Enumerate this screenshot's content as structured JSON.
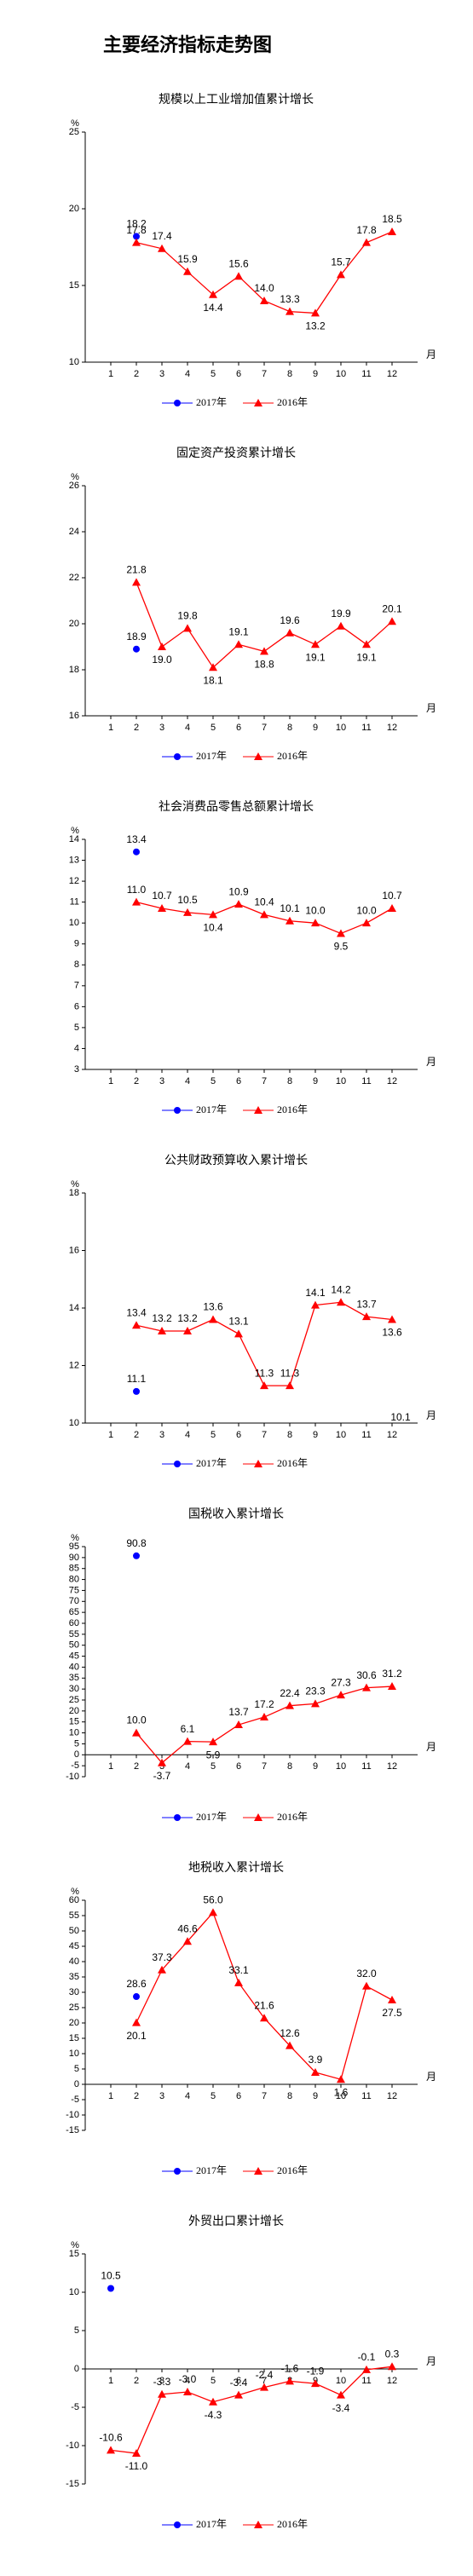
{
  "title": "主要经济指标走势图",
  "chart_data": [
    {
      "type": "line",
      "title": "规模以上工业增加值累计增长",
      "y_label": "%",
      "x_label": "月",
      "categories": [
        "1",
        "2",
        "3",
        "4",
        "5",
        "6",
        "7",
        "8",
        "9",
        "10",
        "11",
        "12"
      ],
      "ylim": [
        10,
        25
      ],
      "yticks": [
        10,
        15,
        20,
        25
      ],
      "series": [
        {
          "name": "2017年",
          "color": "#0000ff",
          "marker": "circle",
          "values": [
            null,
            18.2,
            null,
            null,
            null,
            null,
            null,
            null,
            null,
            null,
            null,
            null
          ],
          "value_labels": [
            null,
            "18.2",
            null,
            null,
            null,
            null,
            null,
            null,
            null,
            null,
            null,
            null
          ]
        },
        {
          "name": "2016年",
          "color": "#ff0000",
          "marker": "triangle",
          "values": [
            null,
            17.8,
            17.4,
            15.9,
            14.4,
            15.6,
            14.0,
            13.3,
            13.2,
            15.7,
            17.8,
            18.5
          ],
          "value_labels": [
            null,
            "17.8",
            "17.4",
            "15.9",
            "14.4",
            "15.6",
            "14.0",
            "13.3",
            "13.2",
            "15.7",
            "17.8",
            "18.5"
          ]
        }
      ]
    },
    {
      "type": "line",
      "title": "固定资产投资累计增长",
      "y_label": "%",
      "x_label": "月",
      "categories": [
        "1",
        "2",
        "3",
        "4",
        "5",
        "6",
        "7",
        "8",
        "9",
        "10",
        "11",
        "12"
      ],
      "ylim": [
        16,
        26
      ],
      "yticks": [
        16,
        18,
        20,
        22,
        24,
        26
      ],
      "series": [
        {
          "name": "2017年",
          "color": "#0000ff",
          "marker": "circle",
          "values": [
            null,
            18.9,
            null,
            null,
            null,
            null,
            null,
            null,
            null,
            null,
            null,
            null
          ],
          "value_labels": [
            null,
            "18.9",
            null,
            null,
            null,
            null,
            null,
            null,
            null,
            null,
            null,
            null
          ]
        },
        {
          "name": "2016年",
          "color": "#ff0000",
          "marker": "triangle",
          "values": [
            null,
            21.8,
            19.0,
            19.8,
            18.1,
            19.1,
            18.8,
            19.6,
            19.1,
            19.9,
            19.1,
            20.1
          ],
          "value_labels": [
            null,
            "21.8",
            "19.0",
            "19.8",
            "18.1",
            "19.1",
            "18.8",
            "19.6",
            "19.1",
            "19.9",
            "19.1",
            "20.1"
          ]
        }
      ]
    },
    {
      "type": "line",
      "title": "社会消费品零售总额累计增长",
      "y_label": "%",
      "x_label": "月",
      "categories": [
        "1",
        "2",
        "3",
        "4",
        "5",
        "6",
        "7",
        "8",
        "9",
        "10",
        "11",
        "12"
      ],
      "ylim": [
        3,
        14
      ],
      "yticks": [
        3,
        4,
        5,
        6,
        7,
        8,
        9,
        10,
        11,
        12,
        13,
        14
      ],
      "series": [
        {
          "name": "2017年",
          "color": "#0000ff",
          "marker": "circle",
          "values": [
            null,
            13.4,
            null,
            null,
            null,
            null,
            null,
            null,
            null,
            null,
            null,
            null
          ],
          "value_labels": [
            null,
            "13.4",
            null,
            null,
            null,
            null,
            null,
            null,
            null,
            null,
            null,
            null
          ]
        },
        {
          "name": "2016年",
          "color": "#ff0000",
          "marker": "triangle",
          "values": [
            null,
            11.0,
            10.7,
            10.5,
            10.4,
            10.9,
            10.4,
            10.1,
            10.0,
            9.5,
            10.0,
            10.7
          ],
          "value_labels": [
            null,
            "11.0",
            "10.7",
            "10.5",
            "10.4",
            "10.9",
            "10.4",
            "10.1",
            "10.0",
            "9.5",
            "10.0",
            "10.7"
          ]
        }
      ]
    },
    {
      "type": "line",
      "title": "公共财政预算收入累计增长",
      "y_label": "%",
      "x_label": "月",
      "categories": [
        "1",
        "2",
        "3",
        "4",
        "5",
        "6",
        "7",
        "8",
        "9",
        "10",
        "11",
        "12"
      ],
      "ylim": [
        10,
        18
      ],
      "yticks": [
        10,
        12,
        14,
        16,
        18
      ],
      "annotation": "10.1",
      "series": [
        {
          "name": "2017年",
          "color": "#0000ff",
          "marker": "circle",
          "values": [
            null,
            11.1,
            null,
            null,
            null,
            null,
            null,
            null,
            null,
            null,
            null,
            null
          ],
          "value_labels": [
            null,
            "11.1",
            null,
            null,
            null,
            null,
            null,
            null,
            null,
            null,
            null,
            null
          ]
        },
        {
          "name": "2016年",
          "color": "#ff0000",
          "marker": "triangle",
          "values": [
            null,
            13.4,
            13.2,
            13.2,
            13.6,
            13.1,
            11.3,
            11.3,
            14.1,
            14.2,
            13.7,
            13.6
          ],
          "value_labels": [
            null,
            "13.4",
            "13.2",
            "13.2",
            "13.6",
            "13.1",
            "11.3",
            "11.3",
            "14.1",
            "14.2",
            "13.7",
            "13.6"
          ]
        }
      ]
    },
    {
      "type": "line",
      "title": "国税收入累计增长",
      "y_label": "%",
      "x_label": "月",
      "categories": [
        "1",
        "2",
        "3",
        "4",
        "5",
        "6",
        "7",
        "8",
        "9",
        "10",
        "11",
        "12"
      ],
      "ylim": [
        -10,
        95
      ],
      "yticks": [
        -10,
        -5,
        0,
        5,
        10,
        15,
        20,
        25,
        30,
        35,
        40,
        45,
        50,
        55,
        60,
        65,
        70,
        75,
        80,
        85,
        90,
        95
      ],
      "series": [
        {
          "name": "2017年",
          "color": "#0000ff",
          "marker": "circle",
          "values": [
            null,
            90.8,
            null,
            null,
            null,
            null,
            null,
            null,
            null,
            null,
            null,
            null
          ],
          "value_labels": [
            null,
            "90.8",
            null,
            null,
            null,
            null,
            null,
            null,
            null,
            null,
            null,
            null
          ]
        },
        {
          "name": "2016年",
          "color": "#ff0000",
          "marker": "triangle",
          "values": [
            null,
            10.0,
            -3.7,
            6.1,
            5.9,
            13.7,
            17.2,
            22.4,
            23.3,
            27.3,
            30.6,
            31.2
          ],
          "value_labels": [
            null,
            "10.0",
            "-3.7",
            "6.1",
            "5.9",
            "13.7",
            "17.2",
            "22.4",
            "23.3",
            "27.3",
            "30.6",
            "31.2"
          ]
        }
      ]
    },
    {
      "type": "line",
      "title": "地税收入累计增长",
      "y_label": "%",
      "x_label": "月",
      "categories": [
        "1",
        "2",
        "3",
        "4",
        "5",
        "6",
        "7",
        "8",
        "9",
        "10",
        "11",
        "12"
      ],
      "ylim": [
        -15,
        60
      ],
      "yticks": [
        -15,
        -10,
        -5,
        0,
        5,
        10,
        15,
        20,
        25,
        30,
        35,
        40,
        45,
        50,
        55,
        60
      ],
      "series": [
        {
          "name": "2017年",
          "color": "#0000ff",
          "marker": "circle",
          "values": [
            null,
            28.6,
            null,
            null,
            null,
            null,
            null,
            null,
            null,
            null,
            null,
            null
          ],
          "value_labels": [
            null,
            "28.6",
            null,
            null,
            null,
            null,
            null,
            null,
            null,
            null,
            null,
            null
          ]
        },
        {
          "name": "2016年",
          "color": "#ff0000",
          "marker": "triangle",
          "values": [
            null,
            20.1,
            37.3,
            46.6,
            56.0,
            33.1,
            21.6,
            12.6,
            3.9,
            1.6,
            32.0,
            27.5
          ],
          "value_labels": [
            null,
            "20.1",
            "37.3",
            "46.6",
            "56.0",
            "33.1",
            "21.6",
            "12.6",
            "3.9",
            "1.6",
            "32.0",
            "27.5"
          ]
        }
      ]
    },
    {
      "type": "line",
      "title": "外贸出口累计增长",
      "y_label": "%",
      "x_label": "月",
      "categories": [
        "1",
        "2",
        "3",
        "4",
        "5",
        "6",
        "7",
        "8",
        "9",
        "10",
        "11",
        "12"
      ],
      "ylim": [
        -15,
        15
      ],
      "yticks": [
        -15,
        -10,
        -5,
        0,
        5,
        10,
        15
      ],
      "series": [
        {
          "name": "2017年",
          "color": "#0000ff",
          "marker": "circle",
          "values": [
            10.5,
            null,
            null,
            null,
            null,
            null,
            null,
            null,
            null,
            null,
            null,
            null
          ],
          "value_labels": [
            "10.5",
            null,
            null,
            null,
            null,
            null,
            null,
            null,
            null,
            null,
            null,
            null
          ]
        },
        {
          "name": "2016年",
          "color": "#ff0000",
          "marker": "triangle",
          "values": [
            -10.6,
            -11.0,
            -3.3,
            -3.0,
            -4.3,
            -3.4,
            -2.4,
            -1.6,
            -1.9,
            -3.4,
            -0.1,
            0.3
          ],
          "value_labels": [
            "-10.6",
            "-11.0",
            "-3.3",
            "-3.0",
            "-4.3",
            "-3.4",
            "-2.4",
            "-1.6",
            "-1.9",
            "-3.4",
            "-0.1",
            "0.3"
          ]
        }
      ]
    }
  ]
}
